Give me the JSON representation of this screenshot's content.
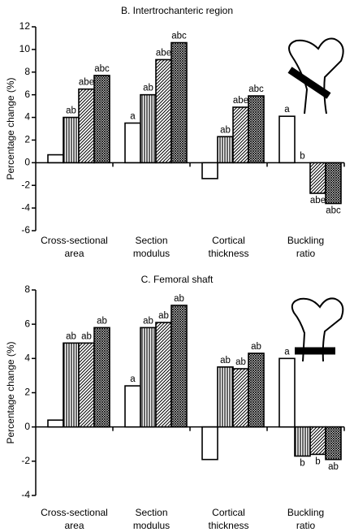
{
  "chart_data": [
    {
      "type": "bar",
      "title": "B. Intertrochanteric region",
      "ylabel": "Percentage change (%)",
      "categories": [
        "Cross-sectional area",
        "Section modulus",
        "Cortical thickness",
        "Buckling ratio"
      ],
      "series": [
        {
          "color": "#000000",
          "values": [
            0.7,
            3.5,
            -1.4,
            4.1
          ],
          "labels": [
            null,
            "a",
            null,
            "a"
          ]
        },
        {
          "color": "#000000",
          "values": [
            4.0,
            6.0,
            2.3,
            0.0
          ],
          "labels": [
            "ab",
            "ab",
            "ab",
            "b"
          ]
        },
        {
          "color": "#000000",
          "values": [
            6.5,
            9.1,
            4.9,
            -2.7
          ],
          "labels": [
            "abe",
            "abe",
            "abe",
            "abe"
          ]
        },
        {
          "color": "#000000",
          "values": [
            7.7,
            10.6,
            5.9,
            -3.6
          ],
          "labels": [
            "abc",
            "abc",
            "abc",
            "abc"
          ]
        }
      ],
      "ylim": [
        -6,
        12
      ],
      "yticks": [
        -6,
        -4,
        -2,
        0,
        2,
        4,
        6,
        8,
        10,
        12
      ]
    },
    {
      "type": "bar",
      "title": "C. Femoral shaft",
      "ylabel": "Percentage change (%)",
      "categories": [
        "Cross-sectional area",
        "Section modulus",
        "Cortical thickness",
        "Buckling ratio"
      ],
      "series": [
        {
          "color": "#000000",
          "values": [
            0.4,
            2.4,
            -1.9,
            4.0
          ],
          "labels": [
            null,
            "a",
            null,
            "a"
          ]
        },
        {
          "color": "#000000",
          "values": [
            4.9,
            5.8,
            3.5,
            -1.7
          ],
          "labels": [
            "ab",
            "ab",
            "ab",
            "b"
          ]
        },
        {
          "color": "#000000",
          "values": [
            4.9,
            6.1,
            3.4,
            -1.6
          ],
          "labels": [
            "ab",
            "ab",
            "ab",
            "b"
          ]
        },
        {
          "color": "#000000",
          "values": [
            5.8,
            7.1,
            4.3,
            -1.9
          ],
          "labels": [
            "ab",
            "ab",
            "ab",
            "ab"
          ]
        }
      ],
      "ylim": [
        -4,
        8
      ],
      "yticks": [
        -4,
        -2,
        0,
        2,
        4,
        6,
        8
      ]
    }
  ]
}
